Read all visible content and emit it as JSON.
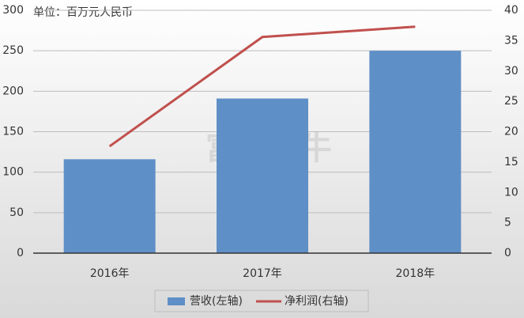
{
  "chart_data": {
    "type": "bar",
    "annotation": "单位：百万元人民币",
    "watermark": "富途牛牛",
    "categories": [
      "2016年",
      "2017年",
      "2018年"
    ],
    "series": [
      {
        "name": "营收(左轴)",
        "type": "bar",
        "color": "#5f8fc7",
        "values": [
          116,
          191,
          250
        ]
      },
      {
        "name": "净利润(右轴)",
        "type": "line",
        "axis": "y2",
        "color": "#c0504d",
        "values": [
          17.6,
          35.6,
          37.3
        ]
      }
    ],
    "ylim": [
      0,
      300
    ],
    "yticks": [
      0,
      50,
      100,
      150,
      200,
      250,
      300
    ],
    "y2lim": [
      0,
      40
    ],
    "y2ticks": [
      0,
      5,
      10,
      15,
      20,
      25,
      30,
      35,
      40
    ],
    "grid": true,
    "legend": "bottom"
  }
}
